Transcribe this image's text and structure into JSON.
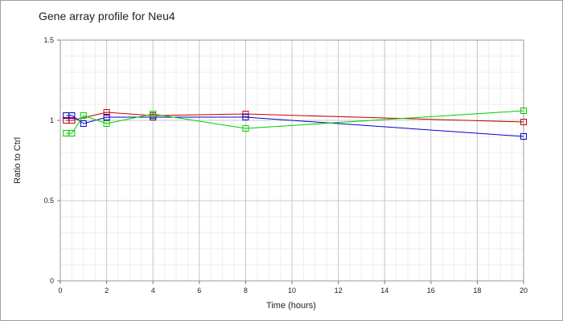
{
  "chart_data": {
    "type": "line",
    "title": "Gene array profile for Neu4",
    "xlabel": "Time (hours)",
    "ylabel": "Ratio to Ctrl",
    "xlim": [
      0,
      20
    ],
    "ylim": [
      0,
      1.5
    ],
    "xticks": [
      0,
      2,
      4,
      6,
      8,
      10,
      12,
      14,
      16,
      18,
      20
    ],
    "yticks": [
      0,
      0.5,
      1,
      1.5
    ],
    "xtick_labels": [
      "0",
      "2",
      "4",
      "6",
      "8",
      "10",
      "12",
      "14",
      "16",
      "18",
      "20"
    ],
    "ytick_labels": [
      "0",
      "0.5",
      "1",
      "1.5"
    ],
    "grid": true,
    "legend": "none",
    "series": [
      {
        "color": "#cc0000",
        "x": [
          0.25,
          0.5,
          2,
          4,
          8,
          20
        ],
        "y": [
          1.0,
          1.0,
          1.05,
          1.03,
          1.04,
          0.99
        ]
      },
      {
        "color": "#0000cc",
        "x": [
          0.25,
          0.5,
          1,
          2,
          4,
          8,
          20
        ],
        "y": [
          1.03,
          1.03,
          0.98,
          1.02,
          1.02,
          1.02,
          0.9
        ]
      },
      {
        "color": "#00cc00",
        "x": [
          0.25,
          0.5,
          1,
          2,
          4,
          8,
          20
        ],
        "y": [
          0.92,
          0.92,
          1.03,
          0.98,
          1.04,
          0.95,
          1.06
        ]
      }
    ]
  }
}
